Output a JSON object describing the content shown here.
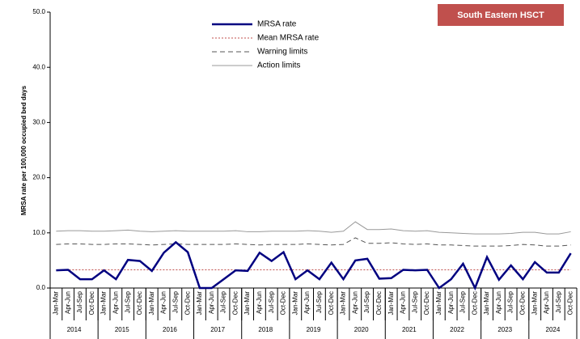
{
  "chart_data": {
    "type": "line",
    "badge": "South Eastern HSCT",
    "ylabel": "MRSA rate per 100,000 occupied bed days",
    "categories": [
      "Jan-Mar",
      "Apr-Jun",
      "Jul-Sep",
      "Oct-Dec",
      "Jan-Mar",
      "Apr-Jun",
      "Jul-Sep",
      "Oct-Dec",
      "Jan-Mar",
      "Apr-Jun",
      "Jul-Sep",
      "Oct-Dec",
      "Jan-Mar",
      "Apr-Jun",
      "Jul-Sep",
      "Oct-Dec",
      "Jan-Mar",
      "Apr-Jun",
      "Jul-Sep",
      "Oct-Dec",
      "Jan-Mar",
      "Apr-Jun",
      "Jul-Sep",
      "Oct-Dec",
      "Jan-Mar",
      "Apr-Jun",
      "Jul-Sep",
      "Oct-Dec",
      "Jan-Mar",
      "Apr-Jun",
      "Jul-Sep",
      "Oct-Dec",
      "Jan-Mar",
      "Apr-Jun",
      "Jul-Sep",
      "Oct-Dec",
      "Jan-Mar",
      "Apr-Jun",
      "Jul-Sep",
      "Oct-Dec",
      "Jan-Mar",
      "Apr-Jun",
      "Jul-Sep",
      "Oct-Dec"
    ],
    "years": [
      "2014",
      "2015",
      "2016",
      "2017",
      "2018",
      "2019",
      "2020",
      "2021",
      "2022",
      "2023",
      "2024"
    ],
    "ylim": [
      0,
      50
    ],
    "yticks": [
      {
        "value": 0,
        "label": "0.0"
      },
      {
        "value": 10,
        "label": "10.0"
      },
      {
        "value": 20,
        "label": "20.0"
      },
      {
        "value": 30,
        "label": "30.0"
      },
      {
        "value": 40,
        "label": "40.0"
      },
      {
        "value": 50,
        "label": "50.0"
      }
    ],
    "series": [
      {
        "name": "MRSA rate",
        "color": "#000080",
        "style": "solid",
        "width": 2.5,
        "values": [
          3.2,
          3.3,
          1.6,
          1.6,
          3.2,
          1.6,
          5.1,
          4.9,
          3.1,
          6.4,
          8.3,
          6.5,
          0,
          0,
          1.6,
          3.2,
          3.1,
          6.4,
          4.9,
          6.5,
          1.6,
          3.2,
          1.6,
          4.6,
          1.6,
          5.0,
          5.3,
          1.7,
          1.8,
          3.3,
          3.2,
          3.3,
          0,
          1.6,
          4.4,
          0,
          5.6,
          1.5,
          4.1,
          1.6,
          4.7,
          2.8,
          2.8,
          6.3
        ]
      },
      {
        "name": "Mean MRSA rate",
        "color": "#c0504d",
        "style": "dotted",
        "width": 1,
        "values": [
          3.3,
          3.3,
          3.3,
          3.3,
          3.3,
          3.3,
          3.3,
          3.3,
          3.3,
          3.3,
          3.3,
          3.3,
          3.3,
          3.3,
          3.3,
          3.3,
          3.3,
          3.3,
          3.3,
          3.3,
          3.3,
          3.3,
          3.3,
          3.3,
          3.3,
          3.3,
          3.3,
          3.3,
          3.3,
          3.3,
          3.3,
          3.3,
          3.3,
          3.3,
          3.3,
          3.3,
          3.3,
          3.3,
          3.3,
          3.3,
          3.3,
          3.3,
          3.3,
          3.3
        ]
      },
      {
        "name": "Warning limits",
        "color": "#555555",
        "style": "dashed",
        "width": 1,
        "values": [
          7.9,
          8.0,
          8.0,
          7.9,
          7.9,
          8.0,
          8.0,
          7.9,
          7.8,
          7.9,
          8.0,
          7.9,
          7.9,
          7.9,
          7.9,
          8.0,
          7.9,
          7.8,
          7.9,
          7.9,
          7.9,
          8.0,
          7.9,
          7.8,
          7.9,
          9.1,
          8.1,
          8.1,
          8.2,
          8.0,
          7.9,
          8.0,
          7.8,
          7.8,
          7.7,
          7.6,
          7.6,
          7.6,
          7.7,
          7.9,
          7.8,
          7.6,
          7.6,
          7.8
        ]
      },
      {
        "name": "Action limits",
        "color": "#999999",
        "style": "solid",
        "width": 1,
        "values": [
          10.3,
          10.4,
          10.4,
          10.3,
          10.3,
          10.4,
          10.5,
          10.3,
          10.2,
          10.3,
          10.4,
          10.3,
          10.3,
          10.3,
          10.3,
          10.4,
          10.2,
          10.2,
          10.3,
          10.3,
          10.3,
          10.4,
          10.3,
          10.1,
          10.3,
          12.0,
          10.6,
          10.6,
          10.7,
          10.4,
          10.3,
          10.4,
          10.1,
          10.0,
          9.9,
          9.8,
          9.8,
          9.8,
          9.9,
          10.1,
          10.1,
          9.8,
          9.8,
          10.2
        ]
      }
    ]
  }
}
